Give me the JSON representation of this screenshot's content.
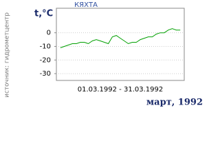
{
  "chart_data": {
    "type": "line",
    "title": "КЯХТА",
    "y_label": "t,°C",
    "source": "источник: гидрометцентр",
    "x_label": "01.03.1992 - 31.03.1992",
    "caption": "март, 1992",
    "x": [
      1,
      2,
      3,
      4,
      5,
      6,
      7,
      8,
      9,
      10,
      11,
      12,
      13,
      14,
      15,
      16,
      17,
      18,
      19,
      20,
      21,
      22,
      23,
      24,
      25,
      26,
      27,
      28,
      29,
      30,
      31
    ],
    "values": [
      -11,
      -10,
      -9,
      -8,
      -8,
      -7,
      -7,
      -8,
      -6,
      -5,
      -6,
      -7,
      -8,
      -3,
      -2,
      -4,
      -6,
      -8,
      -7,
      -7,
      -5,
      -4,
      -3,
      -3,
      -1,
      0,
      0,
      2,
      3,
      2,
      2
    ],
    "color": "#00a000",
    "xlim": [
      0,
      32
    ],
    "ylim": [
      -35,
      18
    ],
    "yticks": [
      -30,
      -20,
      -10,
      0
    ],
    "grid": true
  }
}
